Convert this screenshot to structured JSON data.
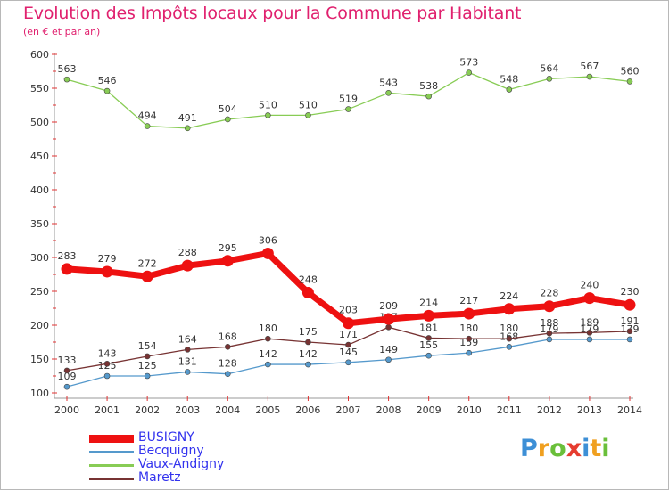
{
  "header": {
    "title": "Evolution des Impôts locaux pour la Commune par Habitant",
    "subtitle": "(en € et par an)"
  },
  "logo": {
    "letters": [
      {
        "ch": "P",
        "color": "#3d8fd6"
      },
      {
        "ch": "r",
        "color": "#f0a020"
      },
      {
        "ch": "o",
        "color": "#6abf3a"
      },
      {
        "ch": "x",
        "color": "#e63c2f"
      },
      {
        "ch": "i",
        "color": "#3d8fd6"
      },
      {
        "ch": "t",
        "color": "#f0a020"
      },
      {
        "ch": "i",
        "color": "#6abf3a"
      }
    ]
  },
  "chart_data": {
    "type": "line",
    "title": "Evolution des Impôts locaux pour la Commune par Habitant",
    "subtitle": "(en € et par an)",
    "x": [
      2000,
      2001,
      2002,
      2003,
      2004,
      2005,
      2006,
      2007,
      2008,
      2009,
      2010,
      2011,
      2012,
      2013,
      2014
    ],
    "ylim": [
      100,
      600
    ],
    "yticks": [
      100,
      150,
      200,
      250,
      300,
      350,
      400,
      450,
      500,
      550,
      600
    ],
    "grid": false,
    "legend_position": "bottom-left",
    "series": [
      {
        "name": "Vaux-Andigny",
        "color": "#88cc55",
        "values": [
          563,
          546,
          494,
          491,
          504,
          510,
          510,
          519,
          543,
          538,
          573,
          548,
          564,
          567,
          560
        ]
      },
      {
        "name": "Becquigny",
        "color": "#5599cc",
        "values": [
          109,
          125,
          125,
          131,
          128,
          142,
          142,
          145,
          149,
          155,
          159,
          168,
          179,
          179,
          179
        ]
      },
      {
        "name": "Maretz",
        "color": "#773333",
        "values": [
          133,
          143,
          154,
          164,
          168,
          180,
          175,
          171,
          197,
          181,
          180,
          180,
          188,
          189,
          191
        ]
      },
      {
        "name": "BUSIGNY",
        "color": "#ee1111",
        "values": [
          283,
          279,
          272,
          288,
          295,
          306,
          248,
          203,
          209,
          214,
          217,
          224,
          228,
          240,
          230
        ]
      }
    ],
    "legend_order": [
      "BUSIGNY",
      "Becquigny",
      "Vaux-Andigny",
      "Maretz"
    ]
  }
}
